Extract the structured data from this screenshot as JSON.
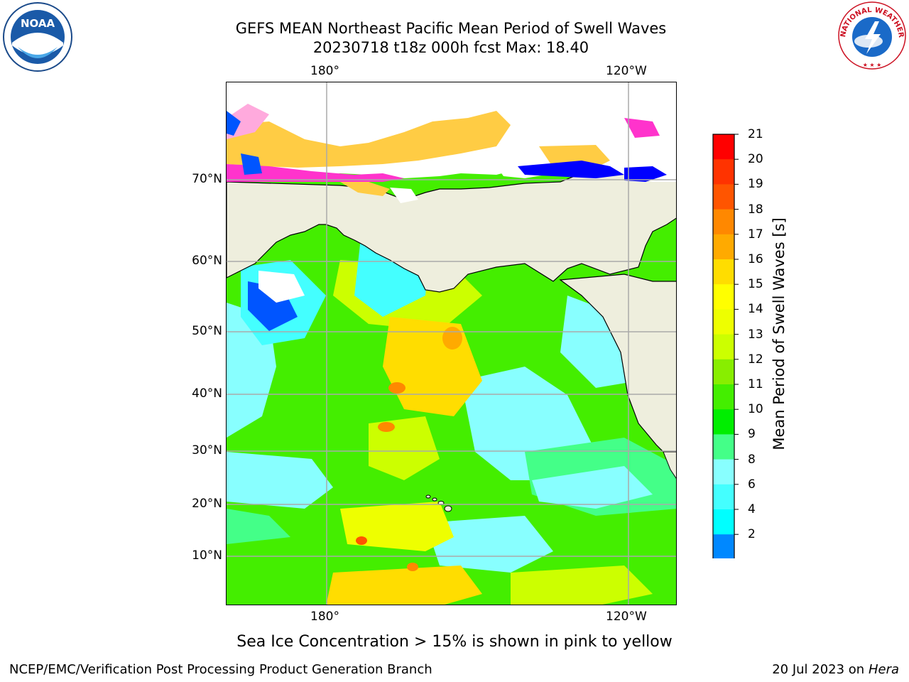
{
  "header": {
    "title_line1": "GEFS MEAN Northeast Pacific Mean Period of Swell Waves",
    "title_line2": "20230718 t18z 000h fcst   Max: 18.40"
  },
  "map": {
    "top_lon_labels": [
      "180°",
      "120°W"
    ],
    "bottom_lon_labels": [
      "180°",
      "120°W"
    ],
    "lat_labels": [
      "70°N",
      "60°N",
      "50°N",
      "40°N",
      "30°N",
      "20°N",
      "10°N"
    ],
    "land_color": "#eeeedd",
    "ice_colors": [
      "#ff33cc",
      "#ffaadd",
      "#ffcc44",
      "#ffffff"
    ]
  },
  "colorbar": {
    "label": "Mean Period of Swell Waves [s]",
    "ticks": [
      "21",
      "20",
      "19",
      "18",
      "17",
      "16",
      "15",
      "14",
      "13",
      "12",
      "11",
      "10",
      "9",
      "8",
      "6",
      "4",
      "2"
    ],
    "colors_top_to_bottom": [
      "#ff0000",
      "#ff3300",
      "#ff5500",
      "#ff8800",
      "#ffaa00",
      "#ffdd00",
      "#ffff00",
      "#eeff00",
      "#ccff00",
      "#88ee00",
      "#44ee00",
      "#00ee00",
      "#44ff88",
      "#88ffff",
      "#44ffff",
      "#00ffff",
      "#0088ff",
      "#0055ff"
    ],
    "extend_color": "#0000ff"
  },
  "caption": "Sea Ice Concentration > 15% is shown in pink to yellow",
  "footer": {
    "left": "NCEP/EMC/Verification Post Processing Product Generation Branch",
    "right_date": "20 Jul 2023 on ",
    "right_host": "Hera"
  },
  "logos": {
    "noaa_text": "NOAA",
    "nws_text": "NATIONAL WEATHER SERVICE"
  }
}
